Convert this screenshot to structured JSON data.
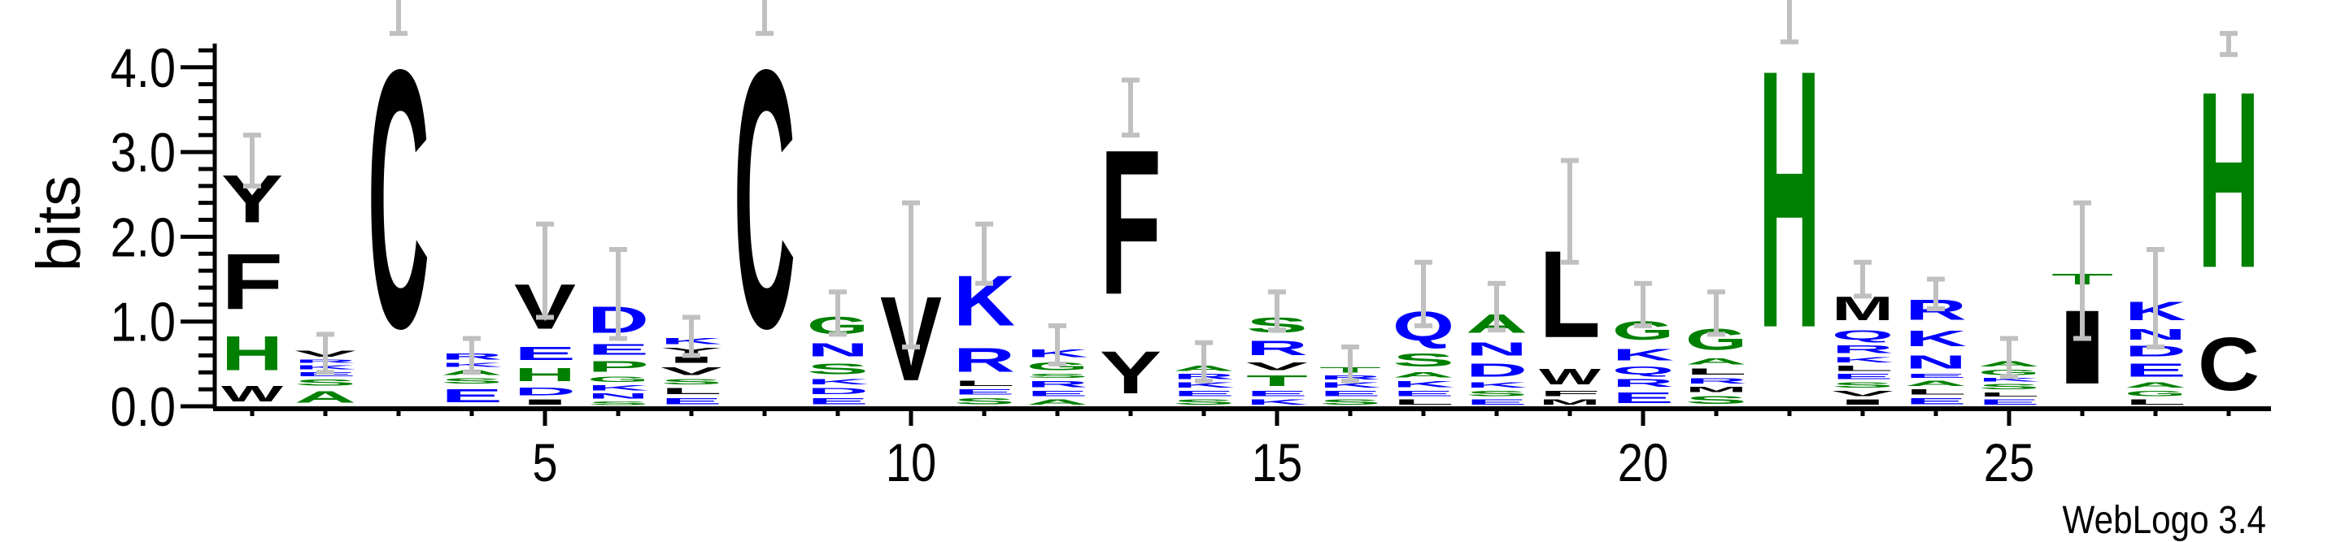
{
  "chart_data": {
    "type": "sequence_logo",
    "ylabel": "bits",
    "xlabel": "",
    "ylim": [
      0,
      4.28
    ],
    "yticks": [
      0.0,
      1.0,
      2.0,
      3.0,
      4.0
    ],
    "ytick_labels": [
      "0.0",
      "1.0",
      "2.0",
      "3.0",
      "4.0"
    ],
    "xticks_labeled": [
      5,
      10,
      15,
      20,
      25
    ],
    "xtick_labels": [
      "5",
      "10",
      "15",
      "20",
      "25"
    ],
    "xlim": [
      0.47,
      28.5
    ],
    "colors": {
      "black": "#000000",
      "blue": "#0000ff",
      "green": "#008000",
      "errorbar": "#c0c0c0"
    },
    "letter_colors": {
      "H": "green",
      "G": "green",
      "S": "green",
      "A": "green",
      "T": "green",
      "P": "green",
      "Q": "blue",
      "N": "blue",
      "D": "blue",
      "K": "blue",
      "R": "blue",
      "E": "blue",
      "M": "black",
      "L": "black",
      "W": "black",
      "F": "black",
      "Y": "black",
      "C": "black",
      "V": "black",
      "I": "black"
    },
    "positions": [
      {
        "pos": 1,
        "stack": [
          [
            "W",
            0.3
          ],
          [
            "H",
            0.65
          ],
          [
            "F",
            1.05
          ],
          [
            "Y",
            0.9
          ]
        ],
        "error": [
          2.6,
          3.2
        ]
      },
      {
        "pos": 2,
        "stack": [
          [
            "A",
            0.22
          ],
          [
            "S",
            0.12
          ],
          [
            "E",
            0.08
          ],
          [
            "K",
            0.08
          ],
          [
            "R",
            0.06
          ],
          [
            "V",
            0.12
          ]
        ],
        "error": [
          0.4,
          0.85
        ]
      },
      {
        "pos": 3,
        "stack": [
          [
            "C",
            4.9
          ]
        ],
        "error": [
          4.4,
          5.0
        ]
      },
      {
        "pos": 4,
        "stack": [
          [
            "E",
            0.25
          ],
          [
            "S",
            0.1
          ],
          [
            "A",
            0.1
          ],
          [
            "K",
            0.08
          ],
          [
            "R",
            0.12
          ]
        ],
        "error": [
          0.4,
          0.8
        ]
      },
      {
        "pos": 5,
        "stack": [
          [
            "I",
            0.1
          ],
          [
            "D",
            0.15
          ],
          [
            "H",
            0.25
          ],
          [
            "E",
            0.25
          ],
          [
            "V",
            0.85
          ]
        ],
        "error": [
          1.05,
          2.15
        ]
      },
      {
        "pos": 6,
        "stack": [
          [
            "S",
            0.07
          ],
          [
            "N",
            0.1
          ],
          [
            "K",
            0.1
          ],
          [
            "G",
            0.1
          ],
          [
            "P",
            0.2
          ],
          [
            "E",
            0.2
          ],
          [
            "D",
            0.5
          ]
        ],
        "error": [
          0.8,
          1.85
        ]
      },
      {
        "pos": 7,
        "stack": [
          [
            "E",
            0.12
          ],
          [
            "L",
            0.12
          ],
          [
            "S",
            0.1
          ],
          [
            "V",
            0.15
          ],
          [
            "I",
            0.12
          ],
          [
            "Y",
            0.1
          ],
          [
            "K",
            0.12
          ]
        ],
        "error": [
          0.6,
          1.05
        ]
      },
      {
        "pos": 8,
        "stack": [
          [
            "C",
            4.9
          ]
        ],
        "error": [
          4.4,
          5.0
        ]
      },
      {
        "pos": 9,
        "stack": [
          [
            "E",
            0.12
          ],
          [
            "D",
            0.12
          ],
          [
            "K",
            0.1
          ],
          [
            "S",
            0.2
          ],
          [
            "N",
            0.25
          ],
          [
            "G",
            0.33
          ]
        ],
        "error": [
          0.85,
          1.35
        ]
      },
      {
        "pos": 10,
        "stack": [
          [
            "V",
            1.6
          ]
        ],
        "error": [
          0.7,
          2.4
        ]
      },
      {
        "pos": 11,
        "stack": [
          [
            "S",
            0.12
          ],
          [
            "E",
            0.1
          ],
          [
            "L",
            0.1
          ],
          [
            "R",
            0.45
          ],
          [
            "K",
            0.95
          ]
        ],
        "error": [
          1.45,
          2.15
        ]
      },
      {
        "pos": 12,
        "stack": [
          [
            "A",
            0.1
          ],
          [
            "E",
            0.1
          ],
          [
            "R",
            0.12
          ],
          [
            "S",
            0.08
          ],
          [
            "G",
            0.15
          ],
          [
            "K",
            0.15
          ]
        ],
        "error": [
          0.5,
          0.95
        ]
      },
      {
        "pos": 13,
        "stack": [
          [
            "Y",
            0.8
          ],
          [
            "F",
            2.75
          ]
        ],
        "error": [
          3.2,
          3.85
        ]
      },
      {
        "pos": 14,
        "stack": [
          [
            "S",
            0.1
          ],
          [
            "E",
            0.1
          ],
          [
            "K",
            0.1
          ],
          [
            "R",
            0.1
          ],
          [
            "A",
            0.1
          ]
        ],
        "error": [
          0.3,
          0.75
        ]
      },
      {
        "pos": 15,
        "stack": [
          [
            "K",
            0.1
          ],
          [
            "E",
            0.1
          ],
          [
            "T",
            0.2
          ],
          [
            "V",
            0.15
          ],
          [
            "R",
            0.27
          ],
          [
            "S",
            0.28
          ]
        ],
        "error": [
          0.9,
          1.35
        ]
      },
      {
        "pos": 16,
        "stack": [
          [
            "S",
            0.1
          ],
          [
            "E",
            0.1
          ],
          [
            "K",
            0.1
          ],
          [
            "R",
            0.08
          ],
          [
            "T",
            0.1
          ]
        ],
        "error": [
          0.3,
          0.7
        ]
      },
      {
        "pos": 17,
        "stack": [
          [
            "L",
            0.1
          ],
          [
            "E",
            0.1
          ],
          [
            "K",
            0.12
          ],
          [
            "A",
            0.1
          ],
          [
            "S",
            0.25
          ],
          [
            "Q",
            0.55
          ]
        ],
        "error": [
          0.95,
          1.7
        ]
      },
      {
        "pos": 18,
        "stack": [
          [
            "E",
            0.1
          ],
          [
            "S",
            0.1
          ],
          [
            "K",
            0.1
          ],
          [
            "D",
            0.25
          ],
          [
            "N",
            0.25
          ],
          [
            "A",
            0.35
          ]
        ],
        "error": [
          0.9,
          1.45
        ]
      },
      {
        "pos": 19,
        "stack": [
          [
            "M",
            0.1
          ],
          [
            "F",
            0.1
          ],
          [
            "W",
            0.3
          ],
          [
            "L",
            1.65
          ]
        ],
        "error": [
          1.7,
          2.9
        ]
      },
      {
        "pos": 20,
        "stack": [
          [
            "E",
            0.2
          ],
          [
            "R",
            0.15
          ],
          [
            "Q",
            0.15
          ],
          [
            "K",
            0.22
          ],
          [
            "G",
            0.35
          ]
        ],
        "error": [
          0.95,
          1.45
        ]
      },
      {
        "pos": 21,
        "stack": [
          [
            "S",
            0.15
          ],
          [
            "M",
            0.1
          ],
          [
            "R",
            0.1
          ],
          [
            "L",
            0.12
          ],
          [
            "A",
            0.12
          ],
          [
            "G",
            0.4
          ]
        ],
        "error": [
          0.85,
          1.35
        ]
      },
      {
        "pos": 22,
        "stack": [
          [
            "H",
            4.9
          ]
        ],
        "error": [
          4.3,
          5.0
        ]
      },
      {
        "pos": 23,
        "stack": [
          [
            "I",
            0.1
          ],
          [
            "V",
            0.1
          ],
          [
            "S",
            0.1
          ],
          [
            "E",
            0.1
          ],
          [
            "L",
            0.1
          ],
          [
            "K",
            0.1
          ],
          [
            "R",
            0.15
          ],
          [
            "Q",
            0.18
          ],
          [
            "M",
            0.45
          ]
        ],
        "error": [
          1.3,
          1.7
        ]
      },
      {
        "pos": 24,
        "stack": [
          [
            "E",
            0.12
          ],
          [
            "L",
            0.1
          ],
          [
            "A",
            0.1
          ],
          [
            "E",
            0.08
          ],
          [
            "N",
            0.25
          ],
          [
            "K",
            0.3
          ],
          [
            "R",
            0.38
          ]
        ],
        "error": [
          1.15,
          1.5
        ]
      },
      {
        "pos": 25,
        "stack": [
          [
            "E",
            0.1
          ],
          [
            "L",
            0.08
          ],
          [
            "S",
            0.1
          ],
          [
            "K",
            0.07
          ],
          [
            "G",
            0.1
          ],
          [
            "A",
            0.1
          ]
        ],
        "error": [
          0.35,
          0.8
        ]
      },
      {
        "pos": 26,
        "stack": [
          [
            "I",
            1.4
          ],
          [
            "T",
            0.2
          ]
        ],
        "error": [
          0.8,
          2.4
        ]
      },
      {
        "pos": 27,
        "stack": [
          [
            "L",
            0.1
          ],
          [
            "G",
            0.1
          ],
          [
            "A",
            0.1
          ],
          [
            "E",
            0.25
          ],
          [
            "D",
            0.2
          ],
          [
            "N",
            0.2
          ],
          [
            "K",
            0.35
          ]
        ],
        "error": [
          0.7,
          1.85
        ]
      },
      {
        "pos": 28,
        "stack": [
          [
            "C",
            1.0
          ],
          [
            "H",
            3.35
          ]
        ],
        "error": [
          4.15,
          4.4
        ]
      }
    ]
  },
  "footer": {
    "version_label": "WebLogo 3.4"
  }
}
